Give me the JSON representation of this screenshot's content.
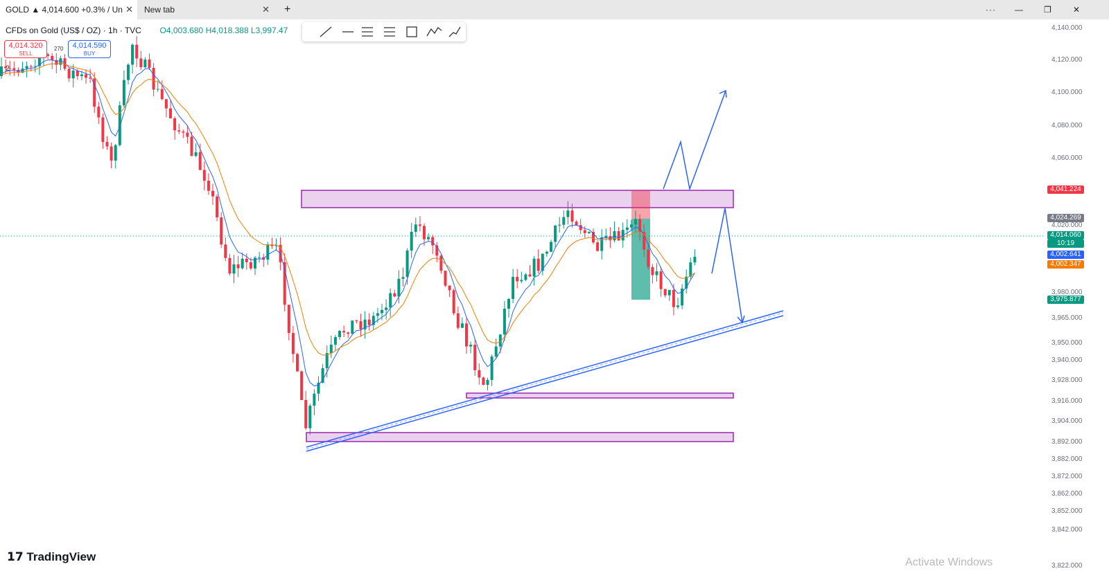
{
  "tabs": [
    "GOLD ▲ 4,014.600 +0.3% / Un",
    "New tab"
  ],
  "legend": {
    "symbol": "CFDs on Gold (US$ / OZ) · 1h · TVC",
    "open": "O4,003.680",
    "high": "H4,018.388",
    "low": "L3,997.47"
  },
  "trade": {
    "sell_price": "4,014.320",
    "sell": "SELL",
    "spread": "270",
    "buy_price": "4,014.590",
    "buy": "BUY",
    "counter": "2"
  },
  "axis_labels": [
    "4,140.000",
    "4,120.000",
    "4,100.000",
    "4,080.000",
    "4,060.000",
    "4,020.000",
    "3,980.000",
    "3,965.000",
    "3,950.000",
    "3,940.000",
    "3,928.000",
    "3,916.000",
    "3,904.000",
    "3,892.000",
    "3,882.000",
    "3,872.000",
    "3,862.000",
    "3,852.000",
    "3,842.000",
    "3,822.000"
  ],
  "price_tags": [
    "4,041.224",
    "4,024.269",
    "4,014.060",
    "10:19",
    "4,002.641",
    "4,002.347",
    "3,975.877"
  ],
  "brand": "TradingView",
  "watermark": "Activate Windows"
}
